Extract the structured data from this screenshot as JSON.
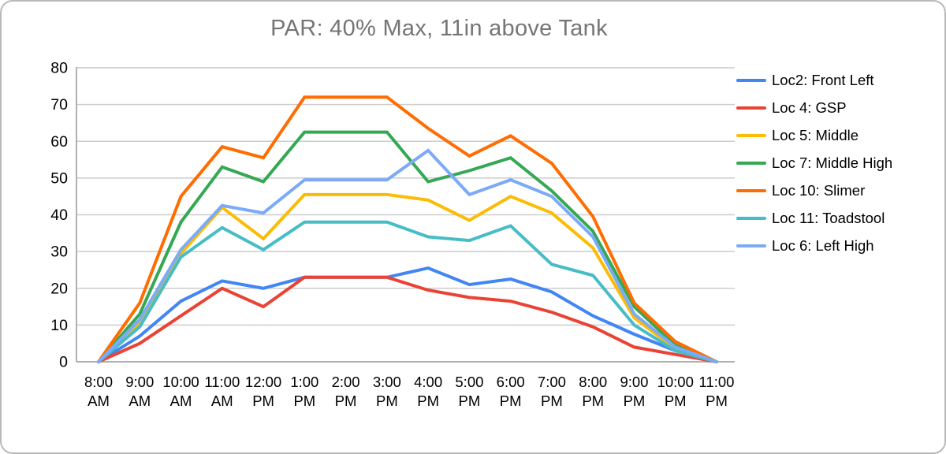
{
  "chart_data": {
    "type": "line",
    "title": "PAR: 40% Max, 11in above Tank",
    "title_color": "#757575",
    "xlabel": "",
    "ylabel": "",
    "ylim": [
      0,
      80
    ],
    "y_ticks": [
      0,
      10,
      20,
      30,
      40,
      50,
      60,
      70,
      80
    ],
    "grid": "horizontal",
    "grid_color": "#cccccc",
    "axis_color": "#b0b0b0",
    "label_color": "#000000",
    "legend_position": "right",
    "categories": [
      "8:00 AM",
      "9:00 AM",
      "10:00 AM",
      "11:00 AM",
      "12:00 PM",
      "1:00 PM",
      "2:00 PM",
      "3:00 PM",
      "4:00 PM",
      "5:00 PM",
      "6:00 PM",
      "7:00 PM",
      "8:00 PM",
      "9:00 PM",
      "10:00 PM",
      "11:00 PM"
    ],
    "x_tick_lines": [
      [
        "8:00",
        "AM"
      ],
      [
        "9:00",
        "AM"
      ],
      [
        "10:00",
        "AM"
      ],
      [
        "11:00",
        "AM"
      ],
      [
        "12:00",
        "PM"
      ],
      [
        "1:00",
        "PM"
      ],
      [
        "2:00",
        "PM"
      ],
      [
        "3:00",
        "PM"
      ],
      [
        "4:00",
        "PM"
      ],
      [
        "5:00",
        "PM"
      ],
      [
        "6:00",
        "PM"
      ],
      [
        "7:00",
        "PM"
      ],
      [
        "8:00",
        "PM"
      ],
      [
        "9:00",
        "PM"
      ],
      [
        "10:00",
        "PM"
      ],
      [
        "11:00",
        "PM"
      ]
    ],
    "series": [
      {
        "name": "Loc2: Front Left",
        "color": "#4285F4",
        "values": [
          0,
          7,
          16.5,
          22,
          20,
          23,
          23,
          23,
          25.5,
          21,
          22.5,
          19,
          12.5,
          7.5,
          3,
          0
        ]
      },
      {
        "name": "Loc 4: GSP",
        "color": "#EA4335",
        "values": [
          0,
          5,
          12.5,
          20,
          15,
          23,
          23,
          23,
          19.5,
          17.5,
          16.5,
          13.5,
          9.5,
          4,
          2,
          0
        ]
      },
      {
        "name": "Loc 5: Middle",
        "color": "#FBBC04",
        "values": [
          0,
          10.5,
          29.5,
          42,
          33.5,
          45.5,
          45.5,
          45.5,
          44,
          38.5,
          45,
          40.5,
          31,
          12,
          3.5,
          0
        ]
      },
      {
        "name": "Loc 7: Middle High",
        "color": "#34A853",
        "values": [
          0,
          13,
          38,
          53,
          49,
          62.5,
          62.5,
          62.5,
          49,
          52,
          55.5,
          46.5,
          35.5,
          15,
          4.5,
          0
        ]
      },
      {
        "name": "Loc 10: Slimer",
        "color": "#FF6D01",
        "values": [
          0,
          16,
          45,
          58.5,
          55.5,
          72,
          72,
          72,
          63.5,
          56,
          61.5,
          54,
          39.5,
          16,
          5.5,
          0
        ]
      },
      {
        "name": "Loc 11: Toadstool",
        "color": "#46BDC6",
        "values": [
          0,
          9.5,
          28.5,
          36.5,
          30.5,
          38,
          38,
          38,
          34,
          33,
          37,
          26.5,
          23.5,
          10,
          3,
          0
        ]
      },
      {
        "name": "Loc 6: Left High",
        "color": "#7BAAF7",
        "values": [
          0,
          11.5,
          30.5,
          42.5,
          40.5,
          49.5,
          49.5,
          49.5,
          57.5,
          45.5,
          49.5,
          45,
          34,
          13,
          4,
          0
        ]
      }
    ]
  }
}
